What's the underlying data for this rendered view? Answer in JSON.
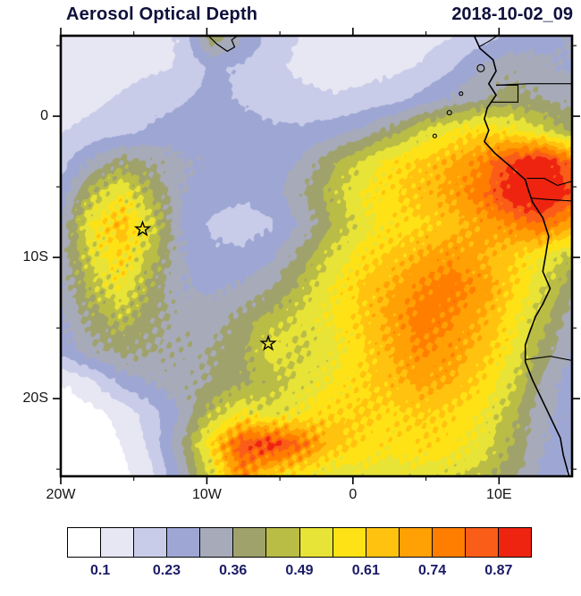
{
  "header": {
    "title": "Aerosol Optical Depth",
    "timestamp": "2018-10-02_09"
  },
  "axes": {
    "x_ticks": [
      {
        "lon": -20,
        "label": "20W"
      },
      {
        "lon": -10,
        "label": "10W"
      },
      {
        "lon": 0,
        "label": "0"
      },
      {
        "lon": 10,
        "label": "10E"
      }
    ],
    "x_minor": [
      -15,
      -5,
      5
    ],
    "y_ticks": [
      {
        "lat": 0,
        "label": "0"
      },
      {
        "lat": -10,
        "label": "10S"
      },
      {
        "lat": -20,
        "label": "20S"
      }
    ],
    "y_minor": [
      5,
      -5,
      -15,
      -25
    ]
  },
  "colorbar": {
    "colors": [
      "#ffffff",
      "#e7e6f3",
      "#c9cce9",
      "#9ea7d4",
      "#a7aab8",
      "#9fa26b",
      "#b9bc45",
      "#e8e337",
      "#ffe215",
      "#ffc30f",
      "#ffa004",
      "#ff7e00",
      "#fa5d18",
      "#ee2410"
    ],
    "levels": [
      0.1,
      0.164,
      0.228,
      0.292,
      0.357,
      0.421,
      0.485,
      0.549,
      0.613,
      0.678,
      0.742,
      0.806,
      0.87
    ],
    "tick_labels": [
      "0.1",
      "0.23",
      "0.36",
      "0.49",
      "0.61",
      "0.74",
      "0.87"
    ],
    "label_boundary_indices": [
      1,
      3,
      5,
      7,
      9,
      11,
      13
    ],
    "label_color": "#1b1b66"
  },
  "map": {
    "coastline": [
      [
        8.3,
        5.7
      ],
      [
        8.7,
        4.8
      ],
      [
        9.6,
        4.0
      ],
      [
        9.8,
        3.2
      ],
      [
        9.3,
        2.3
      ],
      [
        9.8,
        1.5
      ],
      [
        9.2,
        0.6
      ],
      [
        9.0,
        -0.2
      ],
      [
        9.3,
        -1.0
      ],
      [
        9.0,
        -1.8
      ],
      [
        9.7,
        -2.6
      ],
      [
        10.6,
        -3.4
      ],
      [
        11.8,
        -4.5
      ],
      [
        12.0,
        -5.2
      ],
      [
        12.3,
        -6.1
      ],
      [
        13.0,
        -7.2
      ],
      [
        13.4,
        -8.5
      ],
      [
        13.2,
        -9.8
      ],
      [
        13.0,
        -11.0
      ],
      [
        13.5,
        -12.2
      ],
      [
        13.0,
        -13.3
      ],
      [
        12.5,
        -14.2
      ],
      [
        12.1,
        -15.3
      ],
      [
        11.8,
        -16.2
      ],
      [
        11.8,
        -17.4
      ],
      [
        12.3,
        -18.7
      ],
      [
        13.0,
        -20.2
      ],
      [
        13.6,
        -21.5
      ],
      [
        14.2,
        -22.8
      ],
      [
        14.4,
        -24.0
      ],
      [
        14.8,
        -25.5
      ]
    ],
    "borders": [
      [
        [
          8.6,
          4.9
        ],
        [
          9.3,
          5.3
        ],
        [
          9.9,
          5.7
        ]
      ],
      [
        [
          9.8,
          2.2
        ],
        [
          12.0,
          2.3
        ],
        [
          15,
          2.3
        ]
      ],
      [
        [
          9.4,
          1.0
        ],
        [
          11.3,
          1.0
        ],
        [
          11.3,
          2.2
        ],
        [
          9.8,
          2.2
        ]
      ],
      [
        [
          11.9,
          -4.4
        ],
        [
          13.1,
          -4.4
        ],
        [
          14.0,
          -4.9
        ],
        [
          15,
          -4.6
        ]
      ],
      [
        [
          12.2,
          -5.8
        ],
        [
          13.4,
          -5.9
        ],
        [
          15,
          -6.0
        ]
      ],
      [
        [
          11.8,
          -17.25
        ],
        [
          13.5,
          -17.0
        ],
        [
          15,
          -17.3
        ]
      ]
    ],
    "islands": [
      {
        "lon": 8.75,
        "lat": 3.4,
        "r": 4
      },
      {
        "lon": 7.4,
        "lat": 1.6,
        "r": 2
      },
      {
        "lon": 6.6,
        "lat": 0.25,
        "r": 2.5
      },
      {
        "lon": 5.6,
        "lat": -1.4,
        "r": 2
      }
    ],
    "extra_contour": [
      [
        -9.9,
        5.7
      ],
      [
        -9.3,
        5.1
      ],
      [
        -8.6,
        4.6
      ],
      [
        -8.1,
        4.9
      ],
      [
        -8.3,
        5.4
      ],
      [
        -7.9,
        5.7
      ]
    ],
    "markers": [
      {
        "lon": -14.4,
        "lat": -8.0,
        "symbol": "star"
      },
      {
        "lon": -5.8,
        "lat": -16.1,
        "symbol": "star"
      }
    ]
  },
  "chart_data": {
    "type": "heatmap",
    "title": "Aerosol Optical Depth",
    "timestamp": "2018-10-02_09",
    "variable": "Aerosol Optical Depth",
    "lon_range": [
      -20,
      15
    ],
    "lat_range": [
      5.7,
      -25.5
    ],
    "xlabel_ticks": [
      "20W",
      "10W",
      "0",
      "10E"
    ],
    "ylabel_ticks": [
      "0",
      "10S",
      "20S"
    ],
    "legend_position": "bottom",
    "lons": [
      -20,
      -17.9,
      -15.9,
      -13.8,
      -11.8,
      -9.7,
      -7.6,
      -5.6,
      -3.5,
      -1.5,
      0.6,
      2.6,
      4.7,
      6.8,
      8.8,
      10.9,
      12.9,
      15
    ],
    "lats": [
      5.7,
      3.47,
      1.24,
      -0.99,
      -3.21,
      -5.44,
      -7.67,
      -9.9,
      -12.13,
      -14.36,
      -16.59,
      -18.81,
      -21.04,
      -23.27,
      -25.5
    ],
    "values": [
      [
        0.13,
        0.13,
        0.14,
        0.14,
        0.17,
        0.4,
        0.3,
        0.2,
        0.16,
        0.14,
        0.13,
        0.13,
        0.14,
        0.16,
        0.2,
        0.24,
        0.27,
        0.3
      ],
      [
        0.13,
        0.13,
        0.14,
        0.15,
        0.17,
        0.24,
        0.22,
        0.18,
        0.15,
        0.14,
        0.14,
        0.15,
        0.17,
        0.22,
        0.3,
        0.34,
        0.31,
        0.28
      ],
      [
        0.14,
        0.15,
        0.17,
        0.2,
        0.22,
        0.25,
        0.22,
        0.2,
        0.18,
        0.17,
        0.18,
        0.2,
        0.25,
        0.3,
        0.35,
        0.38,
        0.36,
        0.33
      ],
      [
        0.16,
        0.18,
        0.2,
        0.24,
        0.26,
        0.27,
        0.26,
        0.24,
        0.24,
        0.26,
        0.3,
        0.38,
        0.48,
        0.55,
        0.6,
        0.56,
        0.5,
        0.4
      ],
      [
        0.2,
        0.3,
        0.38,
        0.35,
        0.3,
        0.28,
        0.26,
        0.25,
        0.3,
        0.4,
        0.5,
        0.58,
        0.62,
        0.68,
        0.75,
        0.88,
        0.95,
        0.8
      ],
      [
        0.25,
        0.45,
        0.55,
        0.42,
        0.3,
        0.25,
        0.24,
        0.26,
        0.35,
        0.45,
        0.55,
        0.6,
        0.65,
        0.7,
        0.78,
        0.92,
        1.0,
        0.85
      ],
      [
        0.3,
        0.55,
        0.65,
        0.5,
        0.28,
        0.22,
        0.2,
        0.22,
        0.3,
        0.42,
        0.52,
        0.58,
        0.6,
        0.65,
        0.7,
        0.75,
        0.8,
        0.7
      ],
      [
        0.32,
        0.5,
        0.6,
        0.45,
        0.3,
        0.24,
        0.24,
        0.28,
        0.38,
        0.5,
        0.58,
        0.62,
        0.68,
        0.72,
        0.68,
        0.62,
        0.55,
        0.45
      ],
      [
        0.3,
        0.45,
        0.55,
        0.4,
        0.3,
        0.28,
        0.3,
        0.35,
        0.45,
        0.55,
        0.62,
        0.68,
        0.75,
        0.78,
        0.72,
        0.62,
        0.5,
        0.38
      ],
      [
        0.28,
        0.38,
        0.45,
        0.38,
        0.33,
        0.33,
        0.38,
        0.45,
        0.5,
        0.55,
        0.62,
        0.7,
        0.78,
        0.75,
        0.68,
        0.58,
        0.45,
        0.32
      ],
      [
        0.25,
        0.33,
        0.38,
        0.36,
        0.34,
        0.36,
        0.4,
        0.52,
        0.48,
        0.52,
        0.6,
        0.68,
        0.75,
        0.72,
        0.65,
        0.55,
        0.4,
        0.3
      ],
      [
        0.1,
        0.15,
        0.25,
        0.3,
        0.33,
        0.36,
        0.4,
        0.45,
        0.5,
        0.55,
        0.6,
        0.65,
        0.7,
        0.68,
        0.6,
        0.5,
        0.35,
        0.25
      ],
      [
        0.06,
        0.08,
        0.12,
        0.2,
        0.3,
        0.45,
        0.55,
        0.5,
        0.55,
        0.6,
        0.62,
        0.6,
        0.62,
        0.6,
        0.55,
        0.45,
        0.3,
        0.28
      ],
      [
        0.05,
        0.06,
        0.1,
        0.18,
        0.35,
        0.6,
        0.85,
        0.9,
        0.8,
        0.65,
        0.6,
        0.58,
        0.6,
        0.58,
        0.52,
        0.42,
        0.3,
        0.25
      ],
      [
        0.05,
        0.05,
        0.08,
        0.15,
        0.3,
        0.5,
        0.75,
        0.6,
        0.55,
        0.5,
        0.52,
        0.5,
        0.52,
        0.5,
        0.45,
        0.38,
        0.28,
        0.22
      ]
    ]
  }
}
